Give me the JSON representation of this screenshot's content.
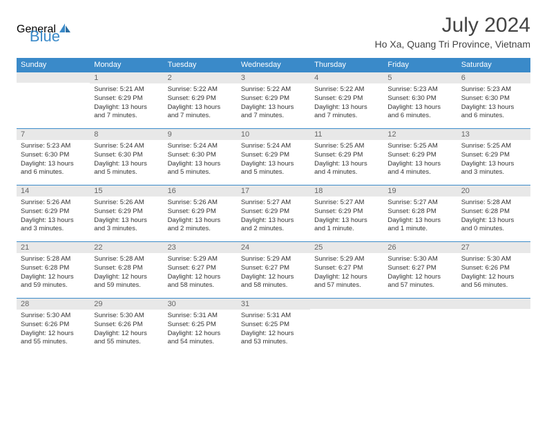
{
  "logo": {
    "text1": "General",
    "text2": "Blue"
  },
  "title": "July 2024",
  "location": "Ho Xa, Quang Tri Province, Vietnam",
  "weekdays": [
    "Sunday",
    "Monday",
    "Tuesday",
    "Wednesday",
    "Thursday",
    "Friday",
    "Saturday"
  ],
  "colors": {
    "header_bg": "#3a8ac9",
    "daynum_bg": "#e8e8e8",
    "text": "#333333"
  },
  "weeks": [
    [
      {
        "n": "",
        "sunrise": "",
        "sunset": "",
        "daylight": ""
      },
      {
        "n": "1",
        "sunrise": "5:21 AM",
        "sunset": "6:29 PM",
        "daylight": "13 hours and 7 minutes."
      },
      {
        "n": "2",
        "sunrise": "5:22 AM",
        "sunset": "6:29 PM",
        "daylight": "13 hours and 7 minutes."
      },
      {
        "n": "3",
        "sunrise": "5:22 AM",
        "sunset": "6:29 PM",
        "daylight": "13 hours and 7 minutes."
      },
      {
        "n": "4",
        "sunrise": "5:22 AM",
        "sunset": "6:29 PM",
        "daylight": "13 hours and 7 minutes."
      },
      {
        "n": "5",
        "sunrise": "5:23 AM",
        "sunset": "6:30 PM",
        "daylight": "13 hours and 6 minutes."
      },
      {
        "n": "6",
        "sunrise": "5:23 AM",
        "sunset": "6:30 PM",
        "daylight": "13 hours and 6 minutes."
      }
    ],
    [
      {
        "n": "7",
        "sunrise": "5:23 AM",
        "sunset": "6:30 PM",
        "daylight": "13 hours and 6 minutes."
      },
      {
        "n": "8",
        "sunrise": "5:24 AM",
        "sunset": "6:30 PM",
        "daylight": "13 hours and 5 minutes."
      },
      {
        "n": "9",
        "sunrise": "5:24 AM",
        "sunset": "6:30 PM",
        "daylight": "13 hours and 5 minutes."
      },
      {
        "n": "10",
        "sunrise": "5:24 AM",
        "sunset": "6:29 PM",
        "daylight": "13 hours and 5 minutes."
      },
      {
        "n": "11",
        "sunrise": "5:25 AM",
        "sunset": "6:29 PM",
        "daylight": "13 hours and 4 minutes."
      },
      {
        "n": "12",
        "sunrise": "5:25 AM",
        "sunset": "6:29 PM",
        "daylight": "13 hours and 4 minutes."
      },
      {
        "n": "13",
        "sunrise": "5:25 AM",
        "sunset": "6:29 PM",
        "daylight": "13 hours and 3 minutes."
      }
    ],
    [
      {
        "n": "14",
        "sunrise": "5:26 AM",
        "sunset": "6:29 PM",
        "daylight": "13 hours and 3 minutes."
      },
      {
        "n": "15",
        "sunrise": "5:26 AM",
        "sunset": "6:29 PM",
        "daylight": "13 hours and 3 minutes."
      },
      {
        "n": "16",
        "sunrise": "5:26 AM",
        "sunset": "6:29 PM",
        "daylight": "13 hours and 2 minutes."
      },
      {
        "n": "17",
        "sunrise": "5:27 AM",
        "sunset": "6:29 PM",
        "daylight": "13 hours and 2 minutes."
      },
      {
        "n": "18",
        "sunrise": "5:27 AM",
        "sunset": "6:29 PM",
        "daylight": "13 hours and 1 minute."
      },
      {
        "n": "19",
        "sunrise": "5:27 AM",
        "sunset": "6:28 PM",
        "daylight": "13 hours and 1 minute."
      },
      {
        "n": "20",
        "sunrise": "5:28 AM",
        "sunset": "6:28 PM",
        "daylight": "13 hours and 0 minutes."
      }
    ],
    [
      {
        "n": "21",
        "sunrise": "5:28 AM",
        "sunset": "6:28 PM",
        "daylight": "12 hours and 59 minutes."
      },
      {
        "n": "22",
        "sunrise": "5:28 AM",
        "sunset": "6:28 PM",
        "daylight": "12 hours and 59 minutes."
      },
      {
        "n": "23",
        "sunrise": "5:29 AM",
        "sunset": "6:27 PM",
        "daylight": "12 hours and 58 minutes."
      },
      {
        "n": "24",
        "sunrise": "5:29 AM",
        "sunset": "6:27 PM",
        "daylight": "12 hours and 58 minutes."
      },
      {
        "n": "25",
        "sunrise": "5:29 AM",
        "sunset": "6:27 PM",
        "daylight": "12 hours and 57 minutes."
      },
      {
        "n": "26",
        "sunrise": "5:30 AM",
        "sunset": "6:27 PM",
        "daylight": "12 hours and 57 minutes."
      },
      {
        "n": "27",
        "sunrise": "5:30 AM",
        "sunset": "6:26 PM",
        "daylight": "12 hours and 56 minutes."
      }
    ],
    [
      {
        "n": "28",
        "sunrise": "5:30 AM",
        "sunset": "6:26 PM",
        "daylight": "12 hours and 55 minutes."
      },
      {
        "n": "29",
        "sunrise": "5:30 AM",
        "sunset": "6:26 PM",
        "daylight": "12 hours and 55 minutes."
      },
      {
        "n": "30",
        "sunrise": "5:31 AM",
        "sunset": "6:25 PM",
        "daylight": "12 hours and 54 minutes."
      },
      {
        "n": "31",
        "sunrise": "5:31 AM",
        "sunset": "6:25 PM",
        "daylight": "12 hours and 53 minutes."
      },
      {
        "n": "",
        "sunrise": "",
        "sunset": "",
        "daylight": ""
      },
      {
        "n": "",
        "sunrise": "",
        "sunset": "",
        "daylight": ""
      },
      {
        "n": "",
        "sunrise": "",
        "sunset": "",
        "daylight": ""
      }
    ]
  ]
}
